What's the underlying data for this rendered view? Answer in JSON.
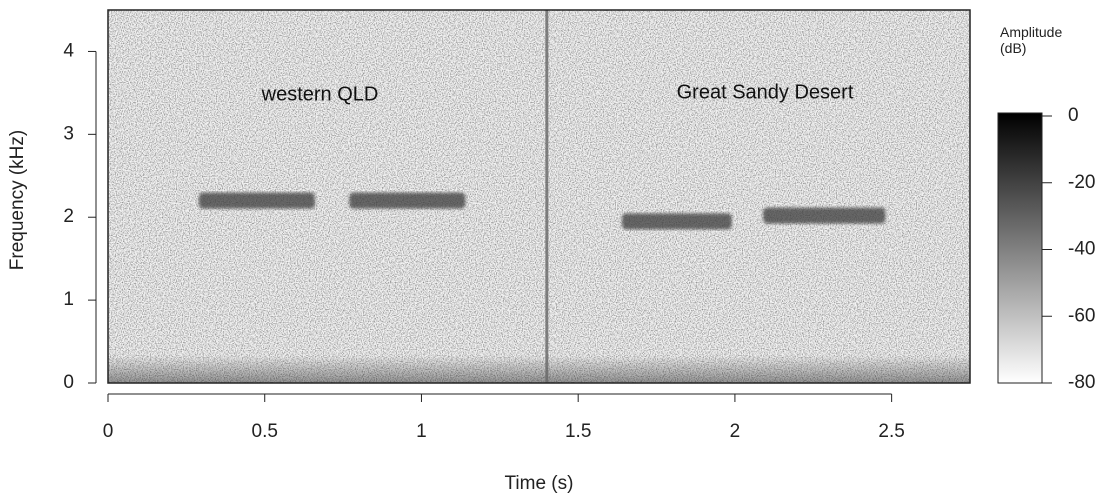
{
  "chart_data": {
    "type": "spectrogram",
    "x_label": "Time (s)",
    "y_label": "Frequency (kHz)",
    "xlim": [
      0,
      2.75
    ],
    "xticks": [
      0,
      0.5,
      1,
      1.5,
      2,
      2.5
    ],
    "ylim": [
      0,
      4.5
    ],
    "yticks": [
      0,
      1,
      2,
      3,
      4
    ],
    "annotations": [
      "western QLD",
      "Great Sandy Desert"
    ],
    "divider": 1.4,
    "calls": [
      {
        "start": 0.29,
        "end": 0.66,
        "freq": 2.2
      },
      {
        "start": 0.77,
        "end": 1.14,
        "freq": 2.2
      },
      {
        "start": 1.64,
        "end": 1.99,
        "freq": 1.95
      },
      {
        "start": 2.09,
        "end": 2.48,
        "freq": 2.02
      }
    ],
    "colorbar": {
      "label": "Amplitude (dB)",
      "lim": [
        -80,
        0
      ],
      "ticks": [
        0,
        -20,
        -40,
        -60,
        -80
      ]
    }
  }
}
